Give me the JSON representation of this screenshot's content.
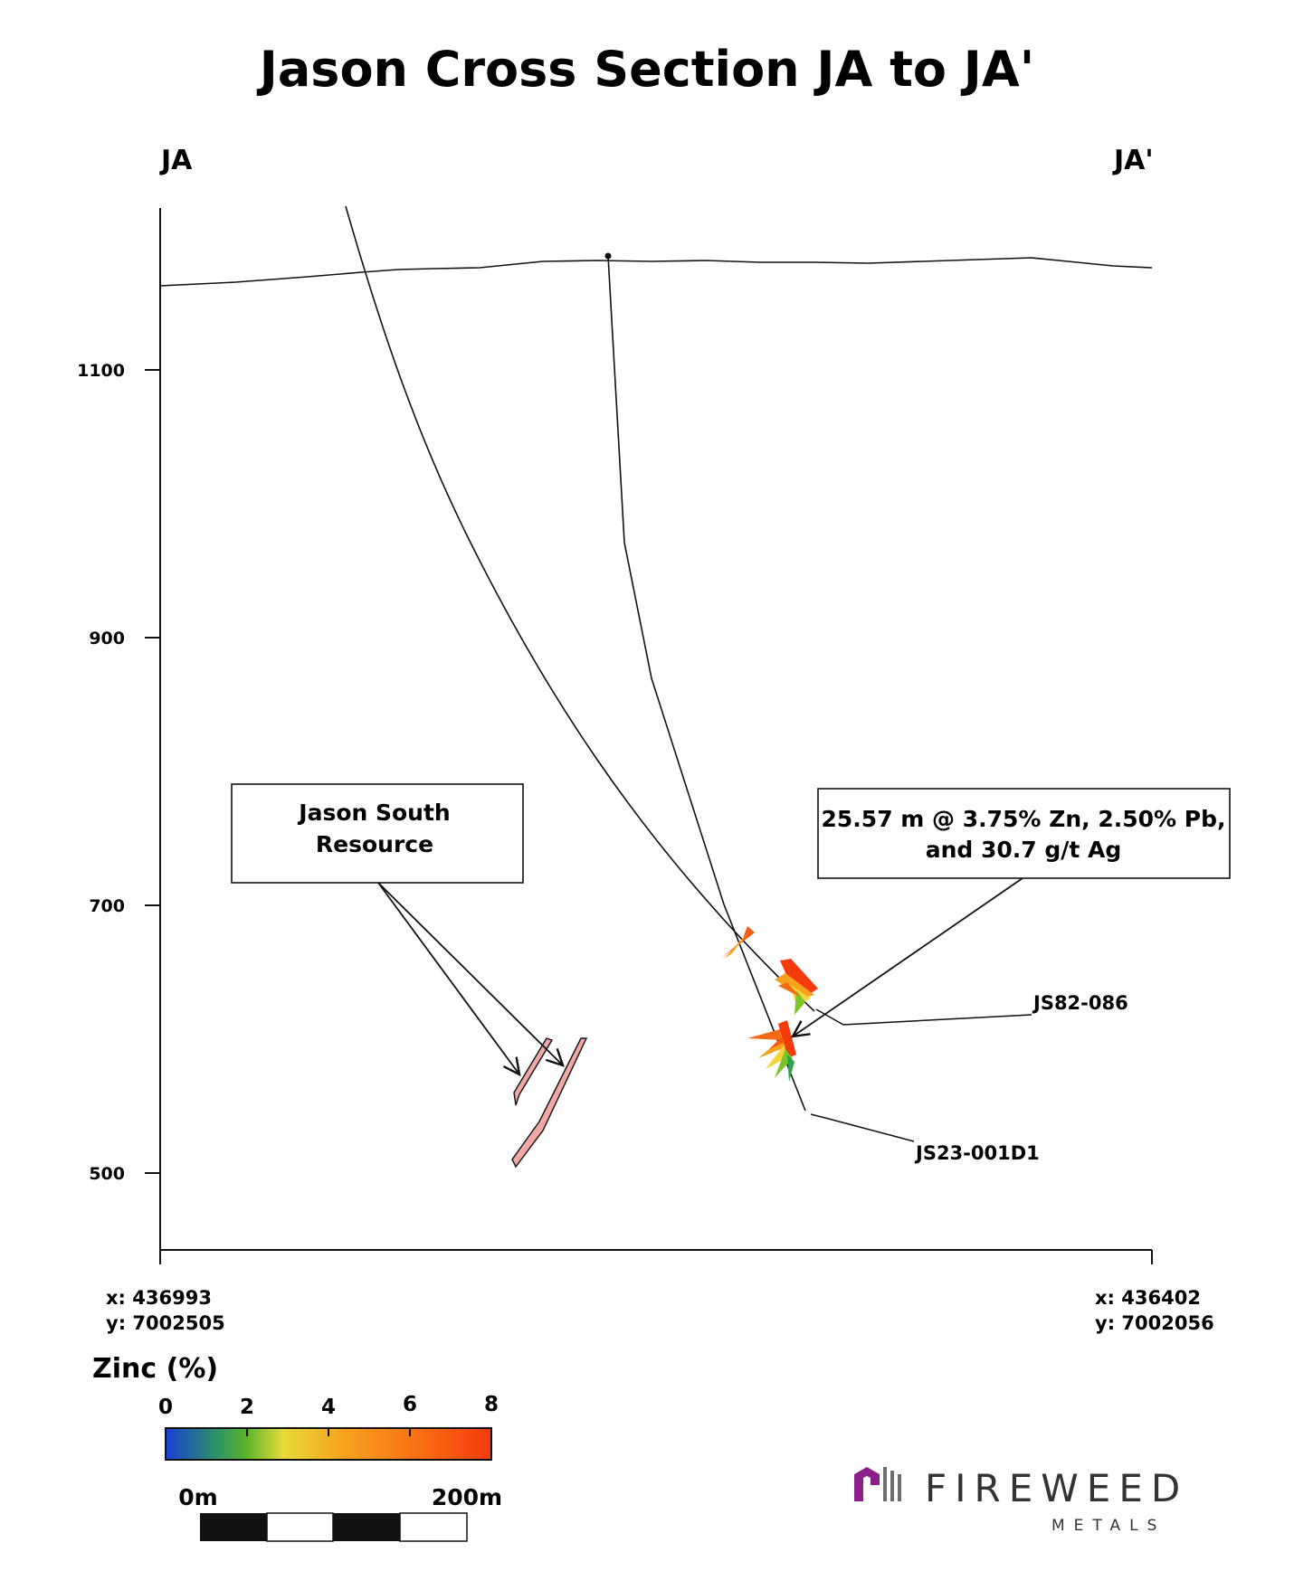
{
  "title": "Jason Cross Section JA to JA'",
  "section_start_label": "JA",
  "section_end_label": "JA'",
  "elevation_axis": {
    "ticks": [
      "1100",
      "900",
      "700",
      "500"
    ]
  },
  "start_coordinates": {
    "x": "x: 436993",
    "y": "y: 7002505"
  },
  "end_coordinates": {
    "x": "x: 436402",
    "y": "y: 7002056"
  },
  "resource_callout": {
    "line1": "Jason South",
    "line2": "Resource"
  },
  "intercept_callout": {
    "line1": "25.57 m @ 3.75% Zn, 2.50% Pb,",
    "line2": "and 30.7 g/t Ag"
  },
  "drill_holes": [
    {
      "name": "JS82-086"
    },
    {
      "name": "JS23-001D1"
    }
  ],
  "legend": {
    "title": "Zinc (%)",
    "ticks": [
      "0",
      "2",
      "4",
      "6",
      "8"
    ],
    "colors": [
      "#1a3fd6",
      "#2aa64a",
      "#7cc42a",
      "#f2d53a",
      "#f7a21f",
      "#f76a14",
      "#f53a0c"
    ]
  },
  "scale_bar": {
    "start_label": "0m",
    "end_label": "200m"
  },
  "logo": {
    "name": "FIREWEED",
    "sub": "METALS",
    "color": "#8c1f8a"
  }
}
